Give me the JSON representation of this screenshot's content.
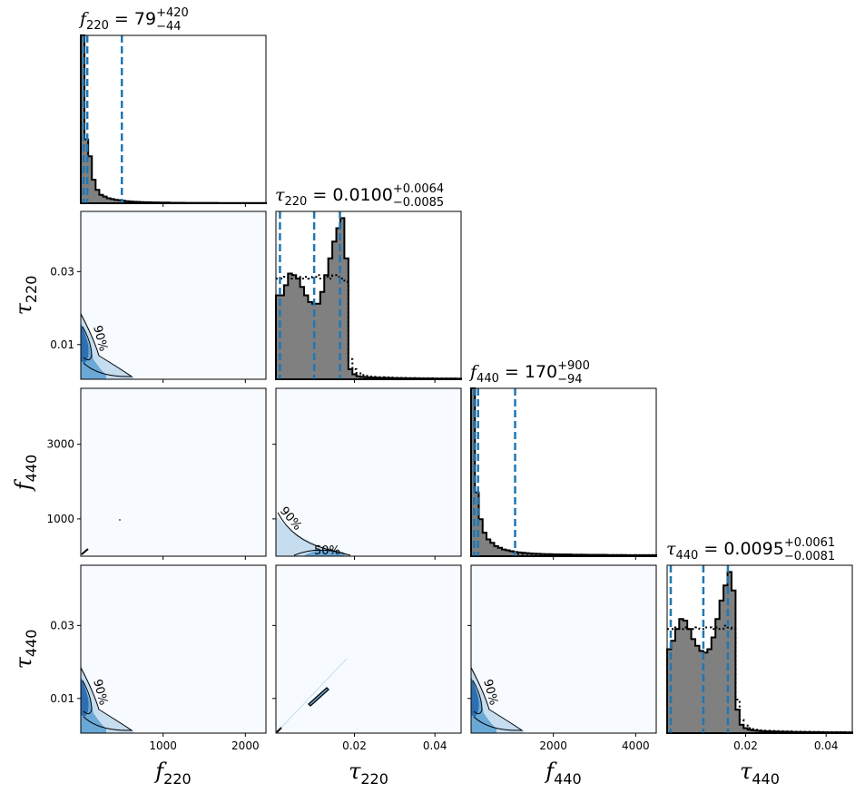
{
  "chart_data": {
    "type": "corner",
    "parameters": [
      {
        "name": "f",
        "sub": "220",
        "range": [
          0,
          2250
        ],
        "ticks": [
          1000,
          2000
        ],
        "tick_labels": [
          "1000",
          "2000"
        ]
      },
      {
        "name": "τ",
        "sub": "220",
        "range": [
          0.0005,
          0.0465
        ],
        "ticks": [
          0.01,
          0.03
        ],
        "tick_labels": [
          "0.01",
          "0.03"
        ],
        "x_ticks": [
          0.02,
          0.04
        ],
        "x_tick_labels": [
          "0.02",
          "0.04"
        ]
      },
      {
        "name": "f",
        "sub": "440",
        "range": [
          0,
          4500
        ],
        "ticks": [
          1000,
          3000
        ],
        "tick_labels": [
          "1000",
          "3000"
        ],
        "x_ticks": [
          2000,
          4000
        ],
        "x_tick_labels": [
          "2000",
          "4000"
        ]
      },
      {
        "name": "τ",
        "sub": "440",
        "range": [
          0.0005,
          0.0465
        ],
        "ticks": [
          0.01,
          0.03
        ],
        "tick_labels": [
          "0.01",
          "0.03"
        ],
        "x_ticks": [
          0.02,
          0.04
        ],
        "x_tick_labels": [
          "0.02",
          "0.04"
        ]
      }
    ],
    "titles": [
      {
        "var": "f",
        "sub": "220",
        "value": "79",
        "plus": "+420",
        "minus": "−44"
      },
      {
        "var": "τ",
        "sub": "220",
        "value": "0.0100",
        "plus": "+0.0064",
        "minus": "−0.0085"
      },
      {
        "var": "f",
        "sub": "440",
        "value": "170",
        "plus": "+900",
        "minus": "−94"
      },
      {
        "var": "τ",
        "sub": "440",
        "value": "0.0095",
        "plus": "+0.0061",
        "minus": "−0.0081"
      }
    ],
    "quantile_lines": [
      [
        35,
        79,
        499
      ],
      [
        0.0015,
        0.01,
        0.0164
      ],
      [
        76,
        170,
        1070
      ],
      [
        0.0014,
        0.0095,
        0.0156
      ]
    ],
    "hist_220f": [
      1.0,
      0.38,
      0.28,
      0.14,
      0.08,
      0.05,
      0.04,
      0.03,
      0.025,
      0.02,
      0.018,
      0.015,
      0.012,
      0.01,
      0.009,
      0.008,
      0.007,
      0.006,
      0.006,
      0.005,
      0.005,
      0.004,
      0.004,
      0.004,
      0.003,
      0.003,
      0.003,
      0.003,
      0.002,
      0.002,
      0.002,
      0.002,
      0.002,
      0.002,
      0.002,
      0.002,
      0.002,
      0.001,
      0.001,
      0.001,
      0.001,
      0.001,
      0.001,
      0.001,
      0.001,
      0.001,
      0.001,
      0.001,
      0.001,
      0.001
    ],
    "hist_220tau": [
      0.5,
      0.5,
      0.56,
      0.63,
      0.62,
      0.6,
      0.55,
      0.5,
      0.46,
      0.45,
      0.45,
      0.52,
      0.62,
      0.72,
      0.82,
      0.9,
      0.96,
      0.72,
      0.06,
      0.03,
      0.018,
      0.014,
      0.012,
      0.011,
      0.01,
      0.009,
      0.009,
      0.008,
      0.008,
      0.007,
      0.007,
      0.007,
      0.006,
      0.006,
      0.006,
      0.005,
      0.005,
      0.005,
      0.005,
      0.004,
      0.004,
      0.004,
      0.004,
      0.004,
      0.004,
      0.003
    ],
    "prior_220tau": [
      0.6,
      0.6,
      0.61,
      0.6,
      0.62,
      0.61,
      0.6,
      0.61,
      0.6,
      0.61,
      0.62,
      0.6,
      0.61,
      0.6,
      0.62,
      0.61,
      0.6,
      0.58,
      0.12,
      0.06,
      0.035,
      0.025,
      0.02,
      0.017,
      0.015,
      0.013,
      0.012,
      0.011,
      0.01,
      0.009,
      0.009,
      0.008,
      0.008,
      0.007,
      0.007,
      0.007,
      0.006,
      0.006,
      0.006,
      0.005,
      0.005,
      0.005,
      0.005,
      0.005,
      0.005,
      0.004
    ],
    "hist_440f": [
      1.0,
      0.38,
      0.22,
      0.14,
      0.1,
      0.08,
      0.06,
      0.05,
      0.04,
      0.035,
      0.03,
      0.025,
      0.022,
      0.02,
      0.018,
      0.016,
      0.015,
      0.014,
      0.013,
      0.012,
      0.012,
      0.011,
      0.011,
      0.01,
      0.01,
      0.01,
      0.009,
      0.009,
      0.009,
      0.009,
      0.008,
      0.008,
      0.008,
      0.008,
      0.008,
      0.007,
      0.007,
      0.007,
      0.007,
      0.007,
      0.006,
      0.006,
      0.006,
      0.006,
      0.006,
      0.006,
      0.006,
      0.006
    ],
    "prior_440f": [
      0.0,
      0.0,
      0.0,
      0.0,
      0.0,
      0.0,
      0.0,
      0.0,
      0.0,
      0.0,
      0.0,
      0.0,
      0.014,
      0.013,
      0.013,
      0.012,
      0.012,
      0.011,
      0.011,
      0.011,
      0.01,
      0.01,
      0.01,
      0.01,
      0.009,
      0.009,
      0.009,
      0.009,
      0.009,
      0.008,
      0.008,
      0.008,
      0.008,
      0.008,
      0.007,
      0.007,
      0.007,
      0.007,
      0.007,
      0.007,
      0.006,
      0.006,
      0.006,
      0.006,
      0.006,
      0.006,
      0.006,
      0.006
    ],
    "hist_440tau": [
      0.5,
      0.55,
      0.62,
      0.68,
      0.67,
      0.62,
      0.56,
      0.52,
      0.49,
      0.48,
      0.5,
      0.57,
      0.68,
      0.79,
      0.88,
      0.96,
      0.85,
      0.14,
      0.05,
      0.03,
      0.02,
      0.016,
      0.014,
      0.012,
      0.011,
      0.01,
      0.01,
      0.009,
      0.009,
      0.008,
      0.008,
      0.007,
      0.007,
      0.007,
      0.006,
      0.006,
      0.006,
      0.006,
      0.005,
      0.005,
      0.005,
      0.005,
      0.005,
      0.005,
      0.004,
      0.004
    ],
    "prior_440tau": [
      0.62,
      0.62,
      0.63,
      0.62,
      0.63,
      0.62,
      0.62,
      0.63,
      0.62,
      0.63,
      0.63,
      0.62,
      0.63,
      0.62,
      0.64,
      0.63,
      0.62,
      0.2,
      0.08,
      0.045,
      0.03,
      0.024,
      0.02,
      0.017,
      0.015,
      0.014,
      0.013,
      0.012,
      0.011,
      0.01,
      0.01,
      0.009,
      0.009,
      0.008,
      0.008,
      0.008,
      0.007,
      0.007,
      0.007,
      0.006,
      0.006,
      0.006,
      0.006,
      0.006,
      0.006,
      0.005
    ],
    "contour_labels": [
      "90%",
      "50%"
    ],
    "colors": {
      "hist_fill": "#808080",
      "quantile": "#1f77b4",
      "panel_bg": "#f7fbff",
      "density_dark": "#2d6fb0",
      "density_mid": "#6aa8d6",
      "density_light": "#c6dcef"
    }
  }
}
